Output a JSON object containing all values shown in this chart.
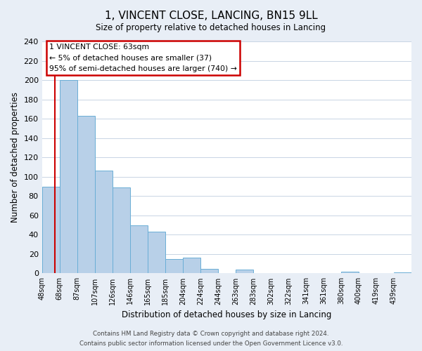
{
  "title": "1, VINCENT CLOSE, LANCING, BN15 9LL",
  "subtitle": "Size of property relative to detached houses in Lancing",
  "xlabel": "Distribution of detached houses by size in Lancing",
  "ylabel": "Number of detached properties",
  "bin_labels": [
    "48sqm",
    "68sqm",
    "87sqm",
    "107sqm",
    "126sqm",
    "146sqm",
    "165sqm",
    "185sqm",
    "204sqm",
    "224sqm",
    "244sqm",
    "263sqm",
    "283sqm",
    "302sqm",
    "322sqm",
    "341sqm",
    "361sqm",
    "380sqm",
    "400sqm",
    "419sqm",
    "439sqm"
  ],
  "bar_heights": [
    90,
    200,
    163,
    106,
    89,
    50,
    43,
    15,
    16,
    5,
    0,
    4,
    0,
    0,
    0,
    0,
    0,
    2,
    0,
    0,
    1
  ],
  "bar_color": "#b8d0e8",
  "bar_edge_color": "#6aaed6",
  "annotation_title": "1 VINCENT CLOSE: 63sqm",
  "annotation_line1": "← 5% of detached houses are smaller (37)",
  "annotation_line2": "95% of semi-detached houses are larger (740) →",
  "annotation_box_color": "#ffffff",
  "annotation_border_color": "#cc0000",
  "ylim": [
    0,
    240
  ],
  "yticks": [
    0,
    20,
    40,
    60,
    80,
    100,
    120,
    140,
    160,
    180,
    200,
    220,
    240
  ],
  "red_line_x": 0.75,
  "footer1": "Contains HM Land Registry data © Crown copyright and database right 2024.",
  "footer2": "Contains public sector information licensed under the Open Government Licence v3.0.",
  "bg_color": "#e8eef6",
  "plot_bg_color": "#ffffff",
  "grid_color": "#c8d4e4"
}
